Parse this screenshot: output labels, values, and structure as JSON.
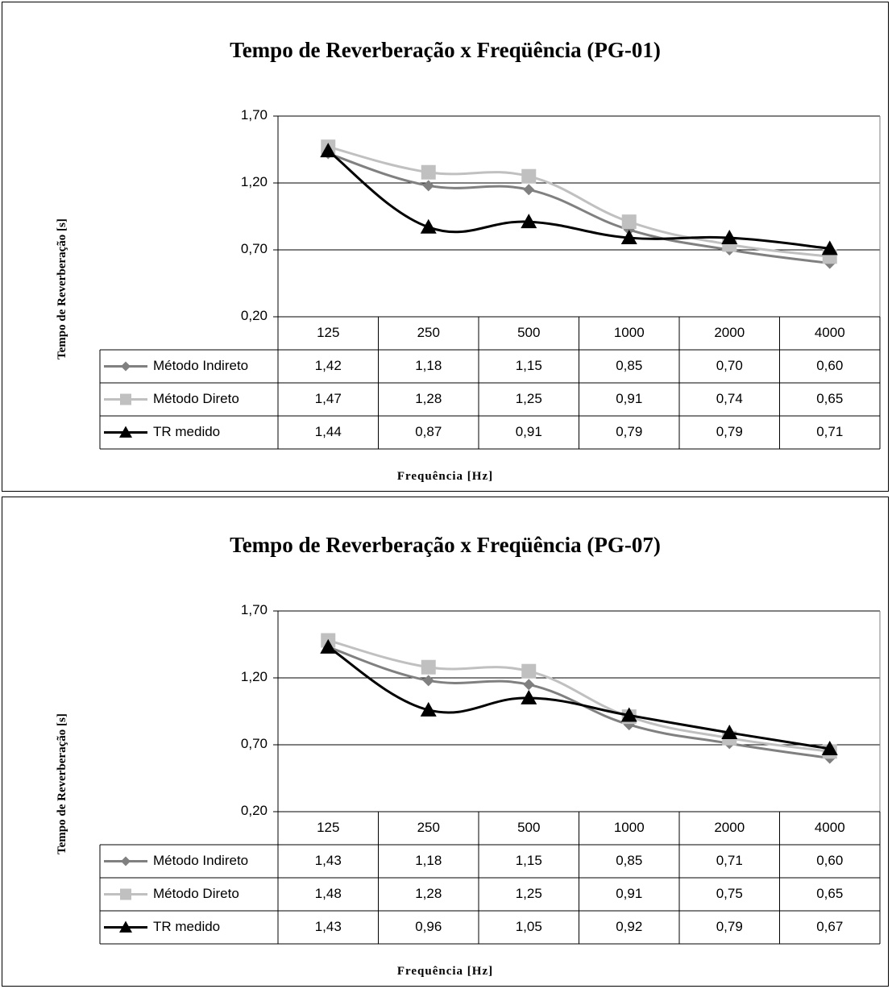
{
  "chart_data": [
    {
      "type": "line",
      "title": "Tempo de Reverberação x Freqüência (PG-01)",
      "xlabel": "Frequência [Hz]",
      "ylabel": "Tempo de Reverberação [s]",
      "ylim": [
        0.2,
        1.7
      ],
      "y_ticks": [
        "1,70",
        "1,20",
        "0,70",
        "0,20"
      ],
      "categories": [
        "125",
        "250",
        "500",
        "1000",
        "2000",
        "4000"
      ],
      "grid": "horizontal",
      "legend": "data-table",
      "series": [
        {
          "name": "Método Indireto",
          "color": "#808080",
          "marker": "diamond",
          "values": [
            1.42,
            1.18,
            1.15,
            0.85,
            0.7,
            0.6
          ],
          "labels": [
            "1,42",
            "1,18",
            "1,15",
            "0,85",
            "0,70",
            "0,60"
          ]
        },
        {
          "name": "Método Direto",
          "color": "#c0c0c0",
          "marker": "square",
          "values": [
            1.47,
            1.28,
            1.25,
            0.91,
            0.74,
            0.65
          ],
          "labels": [
            "1,47",
            "1,28",
            "1,25",
            "0,91",
            "0,74",
            "0,65"
          ]
        },
        {
          "name": "TR medido",
          "color": "#000000",
          "marker": "triangle",
          "values": [
            1.44,
            0.87,
            0.91,
            0.79,
            0.79,
            0.71
          ],
          "labels": [
            "1,44",
            "0,87",
            "0,91",
            "0,79",
            "0,79",
            "0,71"
          ]
        }
      ]
    },
    {
      "type": "line",
      "title": "Tempo de Reverberação x Freqüência (PG-07)",
      "xlabel": "Frequência [Hz]",
      "ylabel": "Tempo de Reverberação [s]",
      "ylim": [
        0.2,
        1.7
      ],
      "y_ticks": [
        "1,70",
        "1,20",
        "0,70",
        "0,20"
      ],
      "categories": [
        "125",
        "250",
        "500",
        "1000",
        "2000",
        "4000"
      ],
      "grid": "horizontal",
      "legend": "data-table",
      "series": [
        {
          "name": "Método Indireto",
          "color": "#808080",
          "marker": "diamond",
          "values": [
            1.43,
            1.18,
            1.15,
            0.85,
            0.71,
            0.6
          ],
          "labels": [
            "1,43",
            "1,18",
            "1,15",
            "0,85",
            "0,71",
            "0,60"
          ]
        },
        {
          "name": "Método Direto",
          "color": "#c0c0c0",
          "marker": "square",
          "values": [
            1.48,
            1.28,
            1.25,
            0.91,
            0.75,
            0.65
          ],
          "labels": [
            "1,48",
            "1,28",
            "1,25",
            "0,91",
            "0,75",
            "0,65"
          ]
        },
        {
          "name": "TR medido",
          "color": "#000000",
          "marker": "triangle",
          "values": [
            1.43,
            0.96,
            1.05,
            0.92,
            0.79,
            0.67
          ],
          "labels": [
            "1,43",
            "0,96",
            "1,05",
            "0,92",
            "0,79",
            "0,67"
          ]
        }
      ]
    }
  ]
}
